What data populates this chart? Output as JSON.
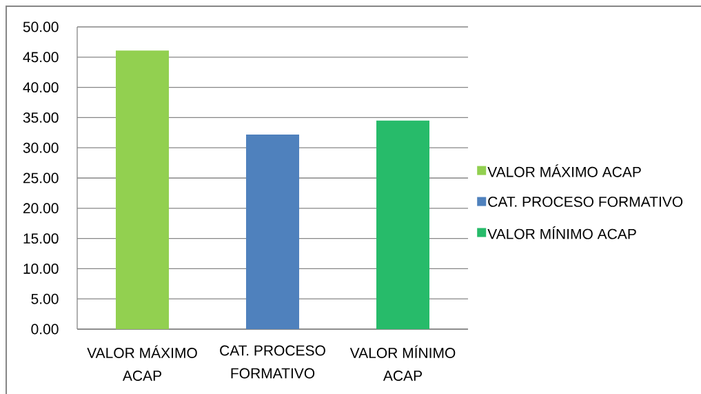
{
  "chart_data": {
    "type": "bar",
    "categories": [
      "VALOR MÁXIMO ACAP",
      "CAT. PROCESO FORMATIVO",
      "VALOR MÍNIMO ACAP"
    ],
    "series": [
      {
        "name": "VALOR MÁXIMO ACAP",
        "color": "#92d050",
        "values": [
          46.1,
          null,
          null
        ]
      },
      {
        "name": "CAT. PROCESO FORMATIVO",
        "color": "#4f81bd",
        "values": [
          null,
          32.2,
          null
        ]
      },
      {
        "name": "VALOR MÍNIMO ACAP",
        "color": "#27bb6a",
        "values": [
          null,
          null,
          34.5
        ]
      }
    ],
    "ylim": [
      0,
      50
    ],
    "yticks": [
      {
        "value": 0,
        "label": "0.00"
      },
      {
        "value": 5,
        "label": "5.00"
      },
      {
        "value": 10,
        "label": "10.00"
      },
      {
        "value": 15,
        "label": "15.00"
      },
      {
        "value": 20,
        "label": "20.00"
      },
      {
        "value": 25,
        "label": "25.00"
      },
      {
        "value": 30,
        "label": "30.00"
      },
      {
        "value": 35,
        "label": "35.00"
      },
      {
        "value": 40,
        "label": "40.00"
      },
      {
        "value": 45,
        "label": "45.00"
      },
      {
        "value": 50,
        "label": "50.00"
      }
    ],
    "grid": "y",
    "legend": "right"
  }
}
